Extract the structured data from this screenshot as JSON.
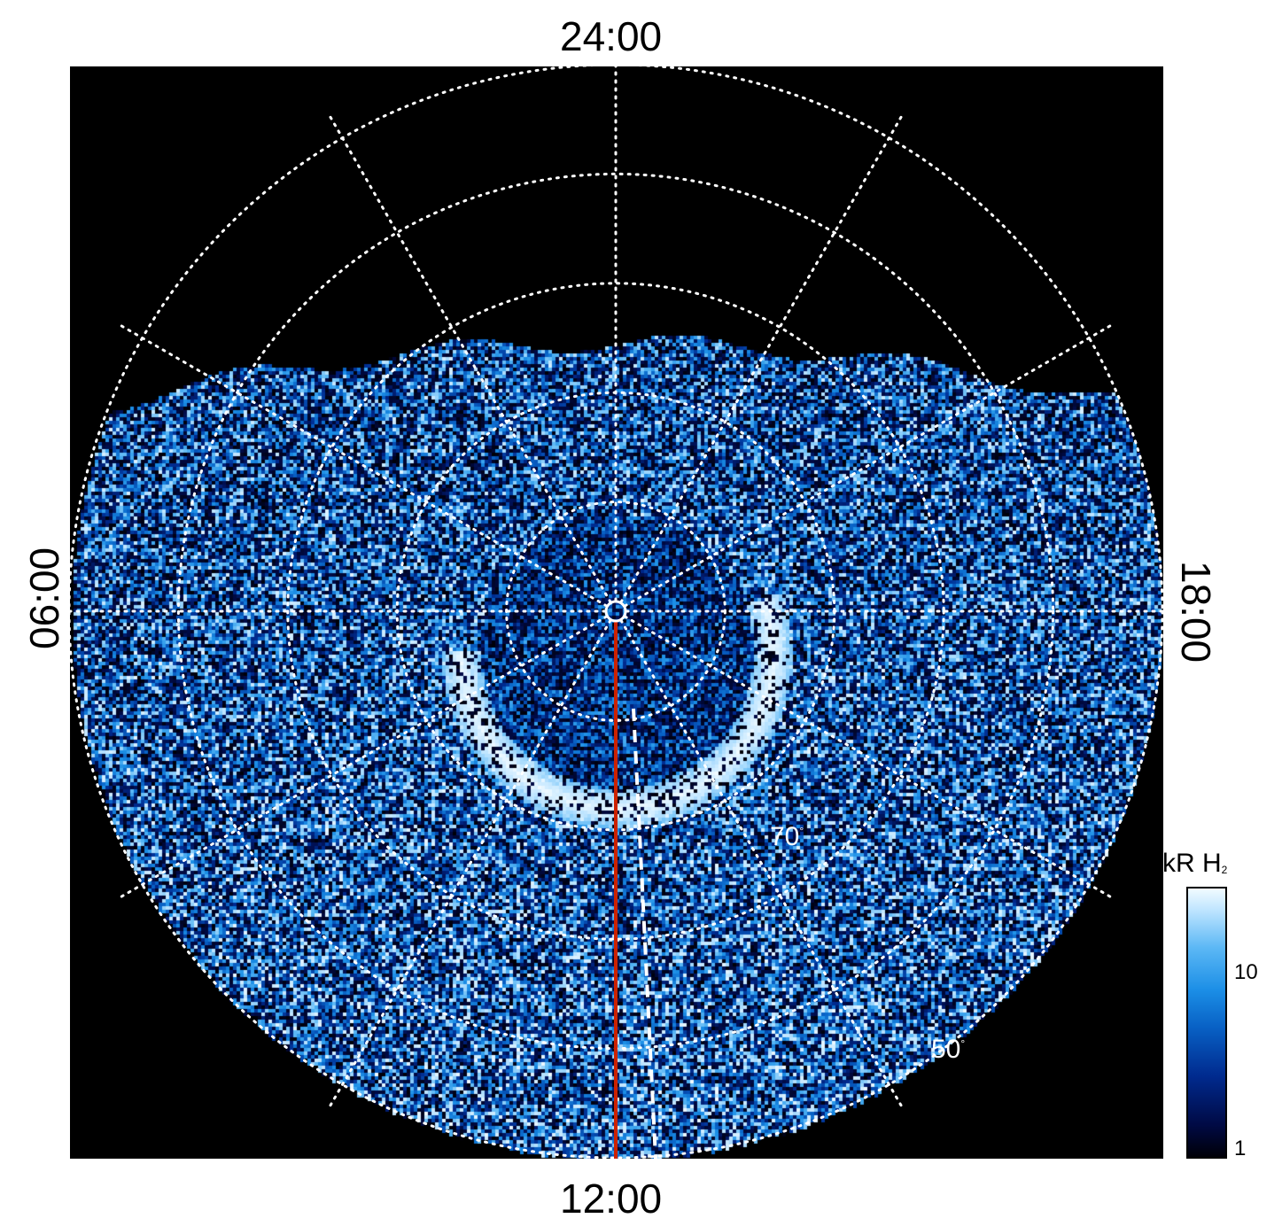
{
  "local_time_labels": {
    "top": "24:00",
    "bottom": "12:00",
    "left": "06:00",
    "right": "18:00"
  },
  "latitude_labels": [
    {
      "text": "70",
      "unit": "°"
    },
    {
      "text": "50",
      "unit": "°"
    }
  ],
  "colorbar": {
    "title": "kR H",
    "title_subscript": "2",
    "scale": "log",
    "ticks": [
      "10",
      "1"
    ],
    "colormap": [
      "#000008",
      "#000a45",
      "#002a8e",
      "#0860c4",
      "#1b8ee6",
      "#5cb8f5",
      "#bfe5ff",
      "#f2fbff"
    ]
  },
  "chart_data": {
    "type": "heatmap",
    "projection": "polar (pole at center, local time around)",
    "background_color": "#000000",
    "grid": "dotted white, latitude circles every 10°, meridians every 2 h",
    "latitude_circles_deg": [
      80,
      70,
      60,
      50,
      40
    ],
    "meridian_spacing_hours": 2,
    "highlight_meridian": {
      "local_time": "12:00",
      "color": "#cc2200"
    },
    "auroral_oval": {
      "shape": "U-shaped arc",
      "latitude_deg_approx": 75,
      "brightness_kR_approx": 20
    },
    "color_scale": {
      "min": 1,
      "max": 20,
      "unit": "kR H2",
      "log": true
    },
    "annotations": [
      "70°",
      "50°"
    ]
  }
}
